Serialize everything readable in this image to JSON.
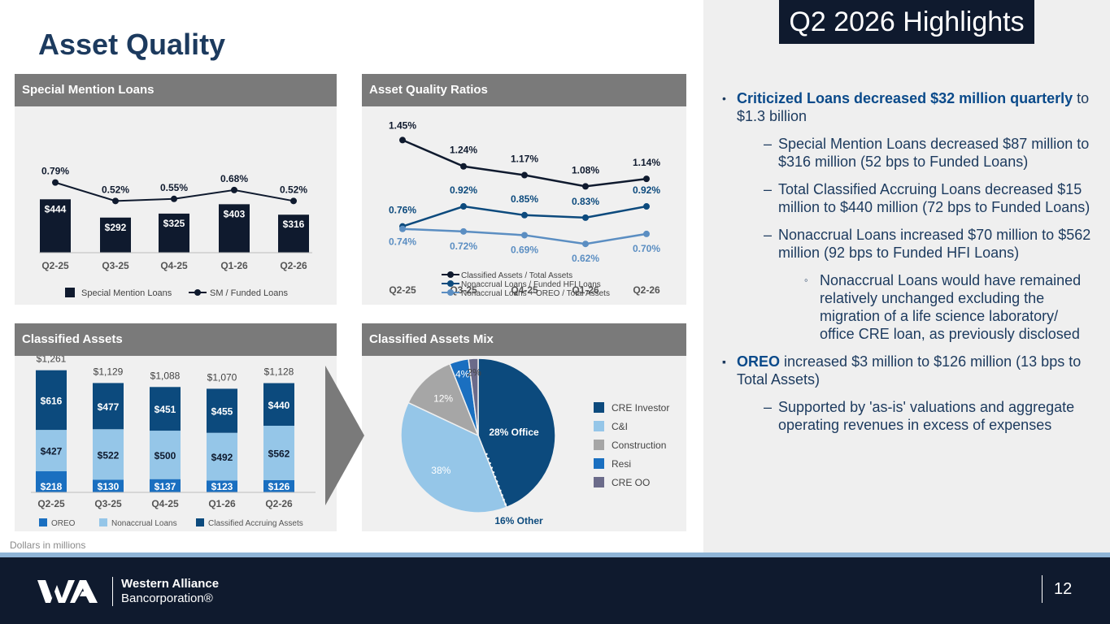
{
  "title": "Asset Quality",
  "highlights_title": "Q2 2026 Highlights",
  "colors": {
    "navy": "#0f1a2e",
    "dark_blue": "#0c4a7d",
    "mid_blue": "#5b8ec2",
    "light_blue": "#95c6e8",
    "gray": "#a6a6a6",
    "bright_blue": "#1a6fc0",
    "purple": "#6b6b8a"
  },
  "panels": {
    "special_mention": "Special Mention Loans",
    "ratios": "Asset Quality Ratios",
    "classified": "Classified Assets",
    "mix": "Classified Assets Mix"
  },
  "chart_data": [
    {
      "type": "bar",
      "categories": [
        "Q2-25",
        "Q3-25",
        "Q4-25",
        "Q1-26",
        "Q2-26"
      ],
      "series": [
        {
          "name": "Special Mention Loans",
          "values": [
            444,
            292,
            325,
            403,
            316
          ],
          "labels": [
            "$444",
            "$292",
            "$325",
            "$403",
            "$316"
          ]
        },
        {
          "name": "SM / Funded Loans",
          "type": "line",
          "values": [
            0.79,
            0.52,
            0.55,
            0.68,
            0.52
          ],
          "labels": [
            "0.79%",
            "0.52%",
            "0.55%",
            "0.68%",
            "0.52%"
          ]
        }
      ]
    },
    {
      "type": "line",
      "categories": [
        "Q2-25",
        "Q3-25",
        "Q4-25",
        "Q1-26",
        "Q2-26"
      ],
      "series": [
        {
          "name": "Classified Assets / Total Assets",
          "values": [
            1.45,
            1.24,
            1.17,
            1.08,
            1.14
          ],
          "labels": [
            "1.45%",
            "1.24%",
            "1.17%",
            "1.08%",
            "1.14%"
          ]
        },
        {
          "name": "Nonaccrual Loans  / Funded HFI Loans",
          "values": [
            0.76,
            0.92,
            0.85,
            0.83,
            0.92
          ],
          "labels": [
            "0.76%",
            "0.92%",
            "0.85%",
            "0.83%",
            "0.92%"
          ]
        },
        {
          "name": "Nonaccrual Loans + OREO / Total Assets",
          "values": [
            0.74,
            0.72,
            0.69,
            0.62,
            0.7
          ],
          "labels": [
            "0.74%",
            "0.72%",
            "0.69%",
            "0.62%",
            "0.70%"
          ]
        }
      ]
    },
    {
      "type": "bar",
      "stacked": true,
      "categories": [
        "Q2-25",
        "Q3-25",
        "Q4-25",
        "Q1-26",
        "Q2-26"
      ],
      "totals": [
        "$1,261",
        "$1,129",
        "$1,088",
        "$1,070",
        "$1,128"
      ],
      "series": [
        {
          "name": "OREO",
          "values": [
            218,
            130,
            137,
            123,
            126
          ],
          "labels": [
            "$218",
            "$130",
            "$137",
            "$123",
            "$126"
          ]
        },
        {
          "name": "Nonaccrual Loans",
          "values": [
            427,
            522,
            500,
            492,
            562
          ],
          "labels": [
            "$427",
            "$522",
            "$500",
            "$492",
            "$562"
          ]
        },
        {
          "name": "Classified Accruing Assets",
          "values": [
            616,
            477,
            451,
            455,
            440
          ],
          "labels": [
            "$616",
            "$477",
            "$451",
            "$455",
            "$440"
          ]
        }
      ]
    },
    {
      "type": "pie",
      "slices": [
        {
          "name": "CRE Investor",
          "value": 44
        },
        {
          "name": "C&I",
          "value": 38,
          "label": "38%"
        },
        {
          "name": "Construction",
          "value": 12,
          "label": "12%"
        },
        {
          "name": "Resi",
          "value": 4,
          "label": "4%"
        },
        {
          "name": "CRE OO",
          "value": 2,
          "label": "2%"
        }
      ],
      "annotations": [
        "28% Office",
        "16% Other"
      ]
    }
  ],
  "bullets": [
    {
      "level": 1,
      "bold": "Criticized Loans decreased $32 million quarterly",
      "text": " to $1.3 billion"
    },
    {
      "level": 2,
      "text": "Special Mention Loans decreased $87 million to $316 million (52 bps to Funded Loans)"
    },
    {
      "level": 2,
      "text": "Total Classified Accruing Loans decreased $15 million to $440 million (72 bps to Funded Loans)"
    },
    {
      "level": 2,
      "text": "Nonaccrual Loans increased $70 million to $562 million (92 bps to Funded HFI Loans)"
    },
    {
      "level": 3,
      "text": "Nonaccrual Loans would have remained relatively unchanged excluding the migration of a life science laboratory/ office CRE loan, as previously disclosed"
    },
    {
      "level": 1,
      "bold": "OREO",
      "text": " increased $3 million to $126 million (13 bps to Total Assets)"
    },
    {
      "level": 2,
      "text": "Supported by 'as-is' valuations and aggregate operating revenues in excess of expenses"
    }
  ],
  "footnote": "Dollars in millions",
  "footer": {
    "logo_line1": "Western Alliance",
    "logo_line2": "Bancorporation®",
    "page_number": "12"
  }
}
